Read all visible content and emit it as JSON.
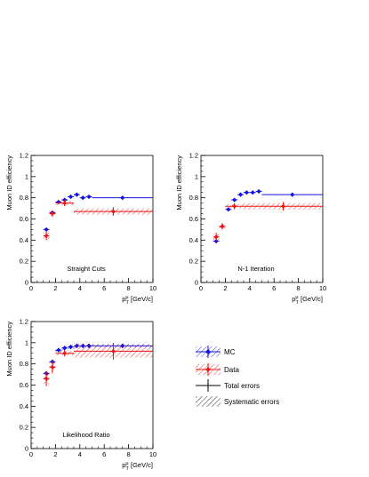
{
  "colors": {
    "mc": "#1111dd",
    "data": "#ee1111",
    "axis": "#000000"
  },
  "legend": {
    "items": [
      {
        "label": "MC",
        "style": "mc"
      },
      {
        "label": "Data",
        "style": "data"
      },
      {
        "label": "Total errors",
        "style": "total"
      },
      {
        "label": "Systematic errors",
        "style": "syst"
      }
    ]
  },
  "chart_data": [
    {
      "type": "scatter",
      "title": "",
      "annotation": "Straight Cuts",
      "xlabel_main": "p",
      "xlabel_sup": "μ",
      "xlabel_sub": "T",
      "xlabel_rest": " [GeV/c]",
      "ylabel": "Muon ID efficiency",
      "xlim": [
        0,
        10
      ],
      "ylim": [
        0,
        1.2
      ],
      "xticks": [
        "0",
        "2",
        "4",
        "6",
        "8",
        "10"
      ],
      "yticks": [
        "0",
        "0.2",
        "0.4",
        "0.6",
        "0.8",
        "1",
        "1.2"
      ],
      "grid": false,
      "series": [
        {
          "name": "MC",
          "style": "mc",
          "points": [
            {
              "x": 1.25,
              "y": 0.5,
              "xerr": 0.25,
              "yerr": 0.01
            },
            {
              "x": 1.75,
              "y": 0.66,
              "xerr": 0.25,
              "yerr": 0.01
            },
            {
              "x": 2.25,
              "y": 0.76,
              "xerr": 0.25,
              "yerr": 0.01
            },
            {
              "x": 2.75,
              "y": 0.78,
              "xerr": 0.25,
              "yerr": 0.01
            },
            {
              "x": 3.25,
              "y": 0.81,
              "xerr": 0.25,
              "yerr": 0.01
            },
            {
              "x": 3.75,
              "y": 0.83,
              "xerr": 0.25,
              "yerr": 0.01
            },
            {
              "x": 4.25,
              "y": 0.8,
              "xerr": 0.25,
              "yerr": 0.01
            },
            {
              "x": 4.75,
              "y": 0.81,
              "xerr": 0.25,
              "yerr": 0.01
            },
            {
              "x": 7.5,
              "y": 0.8,
              "xerr": 2.5,
              "yerr": 0.01
            }
          ]
        },
        {
          "name": "Data",
          "style": "data",
          "points": [
            {
              "x": 1.25,
              "y": 0.44,
              "xerr": 0.25,
              "yerr": 0.04,
              "syst": 0.03
            },
            {
              "x": 1.75,
              "y": 0.65,
              "xerr": 0.25,
              "yerr": 0.03,
              "syst": 0.02
            },
            {
              "x": 2.75,
              "y": 0.75,
              "xerr": 0.75,
              "yerr": 0.03,
              "syst": 0.02
            },
            {
              "x": 6.75,
              "y": 0.67,
              "xerr": 3.25,
              "yerr": 0.04,
              "syst": 0.03
            }
          ]
        }
      ]
    },
    {
      "type": "scatter",
      "title": "",
      "annotation": "N-1 Iteration",
      "xlabel_main": "p",
      "xlabel_sup": "μ",
      "xlabel_sub": "T",
      "xlabel_rest": " [GeV/c]",
      "ylabel": "Muon ID efficiency",
      "xlim": [
        0,
        10
      ],
      "ylim": [
        0,
        1.2
      ],
      "xticks": [
        "0",
        "2",
        "4",
        "6",
        "8",
        "10"
      ],
      "yticks": [
        "0",
        "0.2",
        "0.4",
        "0.6",
        "0.8",
        "1",
        "1.2"
      ],
      "grid": false,
      "series": [
        {
          "name": "MC",
          "style": "mc",
          "points": [
            {
              "x": 1.25,
              "y": 0.39,
              "xerr": 0.25,
              "yerr": 0.01
            },
            {
              "x": 1.75,
              "y": 0.53,
              "xerr": 0.25,
              "yerr": 0.01
            },
            {
              "x": 2.25,
              "y": 0.69,
              "xerr": 0.25,
              "yerr": 0.01
            },
            {
              "x": 2.75,
              "y": 0.78,
              "xerr": 0.25,
              "yerr": 0.01
            },
            {
              "x": 3.25,
              "y": 0.83,
              "xerr": 0.25,
              "yerr": 0.01
            },
            {
              "x": 3.75,
              "y": 0.85,
              "xerr": 0.25,
              "yerr": 0.01
            },
            {
              "x": 4.25,
              "y": 0.85,
              "xerr": 0.25,
              "yerr": 0.01
            },
            {
              "x": 4.75,
              "y": 0.86,
              "xerr": 0.25,
              "yerr": 0.01
            },
            {
              "x": 7.5,
              "y": 0.83,
              "xerr": 2.5,
              "yerr": 0.01
            }
          ]
        },
        {
          "name": "Data",
          "style": "data",
          "points": [
            {
              "x": 1.25,
              "y": 0.43,
              "xerr": 0.25,
              "yerr": 0.04,
              "syst": 0.03
            },
            {
              "x": 1.75,
              "y": 0.53,
              "xerr": 0.25,
              "yerr": 0.03,
              "syst": 0.02
            },
            {
              "x": 2.75,
              "y": 0.72,
              "xerr": 0.75,
              "yerr": 0.03,
              "syst": 0.02
            },
            {
              "x": 6.75,
              "y": 0.72,
              "xerr": 3.25,
              "yerr": 0.04,
              "syst": 0.03
            }
          ]
        }
      ]
    },
    {
      "type": "scatter",
      "title": "",
      "annotation": "Likelihood Ratio",
      "xlabel_main": "p",
      "xlabel_sup": "μ",
      "xlabel_sub": "T",
      "xlabel_rest": " [GeV/c]",
      "ylabel": "Muon ID efficiency",
      "xlim": [
        0,
        10
      ],
      "ylim": [
        0,
        1.2
      ],
      "xticks": [
        "0",
        "2",
        "4",
        "6",
        "8",
        "10"
      ],
      "yticks": [
        "0",
        "0.2",
        "0.4",
        "0.6",
        "0.8",
        "1",
        "1.2"
      ],
      "grid": false,
      "series": [
        {
          "name": "MC",
          "style": "mc",
          "points": [
            {
              "x": 1.25,
              "y": 0.71,
              "xerr": 0.25,
              "yerr": 0.02,
              "syst": 0.02
            },
            {
              "x": 1.75,
              "y": 0.82,
              "xerr": 0.25,
              "yerr": 0.02,
              "syst": 0.02
            },
            {
              "x": 2.25,
              "y": 0.93,
              "xerr": 0.25,
              "yerr": 0.02,
              "syst": 0.02
            },
            {
              "x": 2.75,
              "y": 0.95,
              "xerr": 0.25,
              "yerr": 0.02,
              "syst": 0.02
            },
            {
              "x": 3.25,
              "y": 0.96,
              "xerr": 0.25,
              "yerr": 0.02,
              "syst": 0.02
            },
            {
              "x": 3.75,
              "y": 0.97,
              "xerr": 0.25,
              "yerr": 0.02,
              "syst": 0.02
            },
            {
              "x": 4.25,
              "y": 0.97,
              "xerr": 0.25,
              "yerr": 0.02,
              "syst": 0.02
            },
            {
              "x": 4.75,
              "y": 0.97,
              "xerr": 0.25,
              "yerr": 0.02,
              "syst": 0.02
            },
            {
              "x": 7.5,
              "y": 0.97,
              "xerr": 2.5,
              "yerr": 0.02,
              "syst": 0.02
            }
          ]
        },
        {
          "name": "Data",
          "style": "data",
          "points": [
            {
              "x": 1.25,
              "y": 0.66,
              "xerr": 0.25,
              "yerr": 0.07,
              "syst": 0.05
            },
            {
              "x": 1.75,
              "y": 0.77,
              "xerr": 0.25,
              "yerr": 0.06,
              "syst": 0.04
            },
            {
              "x": 2.75,
              "y": 0.9,
              "xerr": 0.75,
              "yerr": 0.03,
              "syst": 0.02
            },
            {
              "x": 6.75,
              "y": 0.92,
              "xerr": 3.25,
              "yerr": 0.08,
              "syst": 0.06
            }
          ]
        }
      ]
    }
  ]
}
